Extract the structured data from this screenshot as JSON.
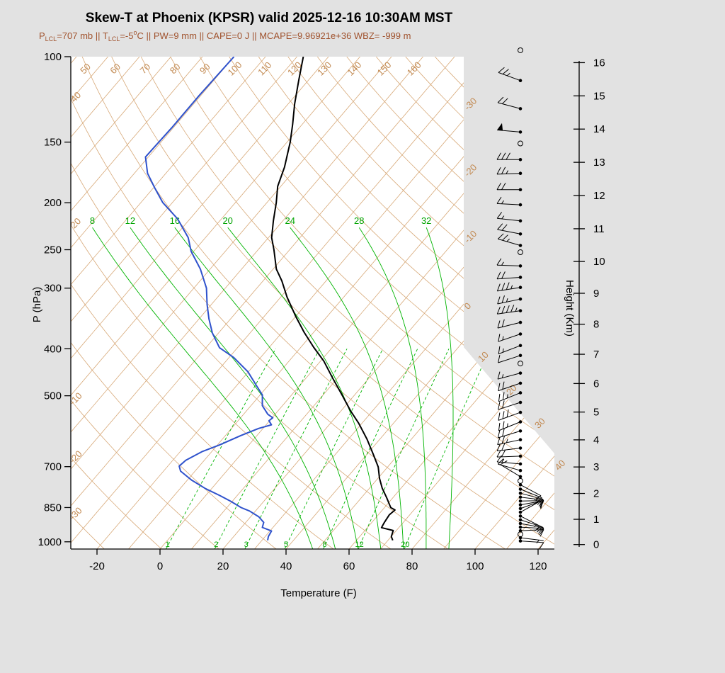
{
  "chart_data": {
    "type": "skewt-sounding",
    "title": "Skew-T at Phoenix (KPSR) valid 2025-12-16 10:30AM MST",
    "stats": {
      "color": "#A0522D",
      "parts": [
        {
          "t": "P"
        },
        {
          "t": "LCL",
          "style": "sub"
        },
        {
          "t": "=707 mb || T"
        },
        {
          "t": "LCL",
          "style": "sub"
        },
        {
          "t": "=-5"
        },
        {
          "t": "o",
          "style": "sup"
        },
        {
          "t": "C || PW=9 mm || CAPE=0 J || MCAPE=9.96921e+36 WBZ= -999 m"
        }
      ]
    },
    "axes": {
      "pressure": {
        "label": "P (hPa)",
        "unit": "hPa",
        "ticks": [
          100,
          150,
          200,
          250,
          300,
          400,
          500,
          700,
          850,
          1000
        ]
      },
      "temperature": {
        "label": "Temperature (F)",
        "unit": "F",
        "ticks": [
          -20,
          0,
          20,
          40,
          60,
          80,
          100,
          120
        ]
      },
      "height": {
        "label": "Height (Km)",
        "unit": "Km",
        "ticks": [
          0,
          1,
          2,
          3,
          4,
          5,
          6,
          7,
          8,
          9,
          10,
          11,
          12,
          13,
          14,
          15,
          16
        ]
      }
    },
    "grid": {
      "isotherm_color": "#D7A877",
      "isotherm_step_f": 10,
      "isotherm_labels_c": [
        -30,
        -20,
        -10,
        0,
        10,
        20,
        30,
        40
      ],
      "dry_adiabat_top_labels_c": [
        50,
        60,
        70,
        80,
        90,
        100,
        110,
        120,
        130,
        140,
        150,
        160
      ],
      "dry_adiabat_left_labels_c": [
        40,
        20,
        -10,
        -20,
        -30
      ],
      "moist_adiabat_labels_c": [
        8,
        12,
        16,
        20,
        24,
        28,
        32
      ],
      "mixing_ratio_labels_gkg": [
        1,
        2,
        3,
        5,
        8,
        12,
        20
      ],
      "green_color": "#00B400"
    },
    "temperature_curve": {
      "color": "#000000",
      "units": "[pressure_hPa, temperature_F]",
      "points": [
        [
          993,
          71.5
        ],
        [
          975,
          70
        ],
        [
          948,
          69
        ],
        [
          935,
          64.5
        ],
        [
          912,
          64
        ],
        [
          880,
          63.5
        ],
        [
          860,
          64
        ],
        [
          850,
          62
        ],
        [
          811,
          58
        ],
        [
          775,
          54
        ],
        [
          740,
          50.5
        ],
        [
          701,
          47
        ],
        [
          660,
          42
        ],
        [
          615,
          36
        ],
        [
          570,
          29
        ],
        [
          537,
          23
        ],
        [
          498,
          16
        ],
        [
          460,
          8.5
        ],
        [
          424,
          1
        ],
        [
          397,
          -6
        ],
        [
          370,
          -13
        ],
        [
          343,
          -20
        ],
        [
          313,
          -28
        ],
        [
          290,
          -34
        ],
        [
          274,
          -39
        ],
        [
          250,
          -45
        ],
        [
          236,
          -49
        ],
        [
          218,
          -53
        ],
        [
          200,
          -57
        ],
        [
          185,
          -61
        ],
        [
          169,
          -64
        ],
        [
          150,
          -69
        ],
        [
          138,
          -73
        ],
        [
          125,
          -78
        ],
        [
          112,
          -83
        ],
        [
          100,
          -88
        ]
      ]
    },
    "dewpoint_curve": {
      "color": "#2F52CC",
      "units": "[pressure_hPa, dewpoint_F]",
      "points": [
        [
          993,
          31.8
        ],
        [
          975,
          31
        ],
        [
          950,
          30.5
        ],
        [
          934,
          26.6
        ],
        [
          912,
          25.7
        ],
        [
          888,
          22.6
        ],
        [
          864,
          18.1
        ],
        [
          850,
          14.5
        ],
        [
          825,
          9.5
        ],
        [
          803,
          4.5
        ],
        [
          777,
          -1.9
        ],
        [
          746,
          -8.7
        ],
        [
          715,
          -14.6
        ],
        [
          698,
          -16.4
        ],
        [
          679,
          -15.9
        ],
        [
          652,
          -13.1
        ],
        [
          631,
          -9.3
        ],
        [
          604,
          -5.1
        ],
        [
          584,
          -1.4
        ],
        [
          574,
          1.7
        ],
        [
          563,
          -0.2
        ],
        [
          555,
          0.2
        ],
        [
          546,
          -2.3
        ],
        [
          524,
          -6.4
        ],
        [
          498,
          -9.3
        ],
        [
          477,
          -13.6
        ],
        [
          446,
          -20.2
        ],
        [
          417,
          -28.5
        ],
        [
          398,
          -35.7
        ],
        [
          371,
          -42
        ],
        [
          347,
          -46.9
        ],
        [
          324,
          -51.4
        ],
        [
          300,
          -56
        ],
        [
          274,
          -63.1
        ],
        [
          252,
          -70.8
        ],
        [
          236,
          -75.5
        ],
        [
          216,
          -83.9
        ],
        [
          200,
          -93
        ],
        [
          186,
          -99.8
        ],
        [
          174,
          -105.8
        ],
        [
          161,
          -110.9
        ],
        [
          140,
          -110.5
        ],
        [
          120,
          -110.5
        ],
        [
          100,
          -110
        ]
      ]
    },
    "winds": [
      {
        "p": 97,
        "spd": 0
      },
      {
        "p": 112,
        "dir": 290,
        "spd": 25
      },
      {
        "p": 128,
        "dir": 285,
        "spd": 20
      },
      {
        "p": 143,
        "dir": 275,
        "spd": 50
      },
      {
        "p": 151,
        "spd": 0
      },
      {
        "p": 163,
        "dir": 270,
        "spd": 30
      },
      {
        "p": 174,
        "dir": 268,
        "spd": 25
      },
      {
        "p": 188,
        "dir": 270,
        "spd": 20
      },
      {
        "p": 202,
        "dir": 273,
        "spd": 15
      },
      {
        "p": 218,
        "dir": 276,
        "spd": 15
      },
      {
        "p": 232,
        "dir": 281,
        "spd": 20
      },
      {
        "p": 245,
        "dir": 286,
        "spd": 25
      },
      {
        "p": 253,
        "spd": 0
      },
      {
        "p": 270,
        "dir": 272,
        "spd": 15
      },
      {
        "p": 285,
        "dir": 266,
        "spd": 20
      },
      {
        "p": 299,
        "dir": 261,
        "spd": 35
      },
      {
        "p": 316,
        "dir": 258,
        "spd": 25
      },
      {
        "p": 334,
        "dir": 262,
        "spd": 45
      },
      {
        "p": 353,
        "dir": 256,
        "spd": 20
      },
      {
        "p": 373,
        "dir": 251,
        "spd": 15
      },
      {
        "p": 394,
        "dir": 249,
        "spd": 15
      },
      {
        "p": 413,
        "dir": 252,
        "spd": 10
      },
      {
        "p": 429,
        "spd": 0
      },
      {
        "p": 449,
        "dir": 255,
        "spd": 15
      },
      {
        "p": 471,
        "dir": 251,
        "spd": 20
      },
      {
        "p": 493,
        "dir": 248,
        "spd": 25
      },
      {
        "p": 516,
        "dir": 252,
        "spd": 20
      },
      {
        "p": 541,
        "dir": 250,
        "spd": 30
      },
      {
        "p": 566,
        "dir": 248,
        "spd": 25
      },
      {
        "p": 591,
        "dir": 253,
        "spd": 20
      },
      {
        "p": 616,
        "dir": 258,
        "spd": 25
      },
      {
        "p": 641,
        "dir": 263,
        "spd": 20
      },
      {
        "p": 666,
        "dir": 268,
        "spd": 20
      },
      {
        "p": 691,
        "dir": 275,
        "spd": 15
      },
      {
        "p": 713,
        "dir": 286,
        "spd": 10
      },
      {
        "p": 734,
        "dir": 301,
        "spd": 10
      },
      {
        "p": 749,
        "spd": 0
      },
      {
        "p": 763,
        "dir": 118,
        "spd": 10
      },
      {
        "p": 779,
        "dir": 112,
        "spd": 10
      },
      {
        "p": 794,
        "dir": 105,
        "spd": 15
      },
      {
        "p": 809,
        "dir": 97,
        "spd": 10
      },
      {
        "p": 824,
        "dir": 89,
        "spd": 10
      },
      {
        "p": 839,
        "dir": 80,
        "spd": 10
      },
      {
        "p": 854,
        "dir": 70,
        "spd": 10
      },
      {
        "p": 869,
        "dir": 61,
        "spd": 10
      },
      {
        "p": 885,
        "dir": 117,
        "spd": 15
      },
      {
        "p": 901,
        "dir": 108,
        "spd": 10
      },
      {
        "p": 917,
        "dir": 100,
        "spd": 15
      },
      {
        "p": 933,
        "dir": 93,
        "spd": 10
      },
      {
        "p": 949,
        "dir": 87,
        "spd": 10
      },
      {
        "p": 965,
        "spd": 0
      },
      {
        "p": 981,
        "dir": 97,
        "spd": 5
      },
      {
        "p": 996,
        "dir": 94,
        "spd": 10
      }
    ]
  }
}
